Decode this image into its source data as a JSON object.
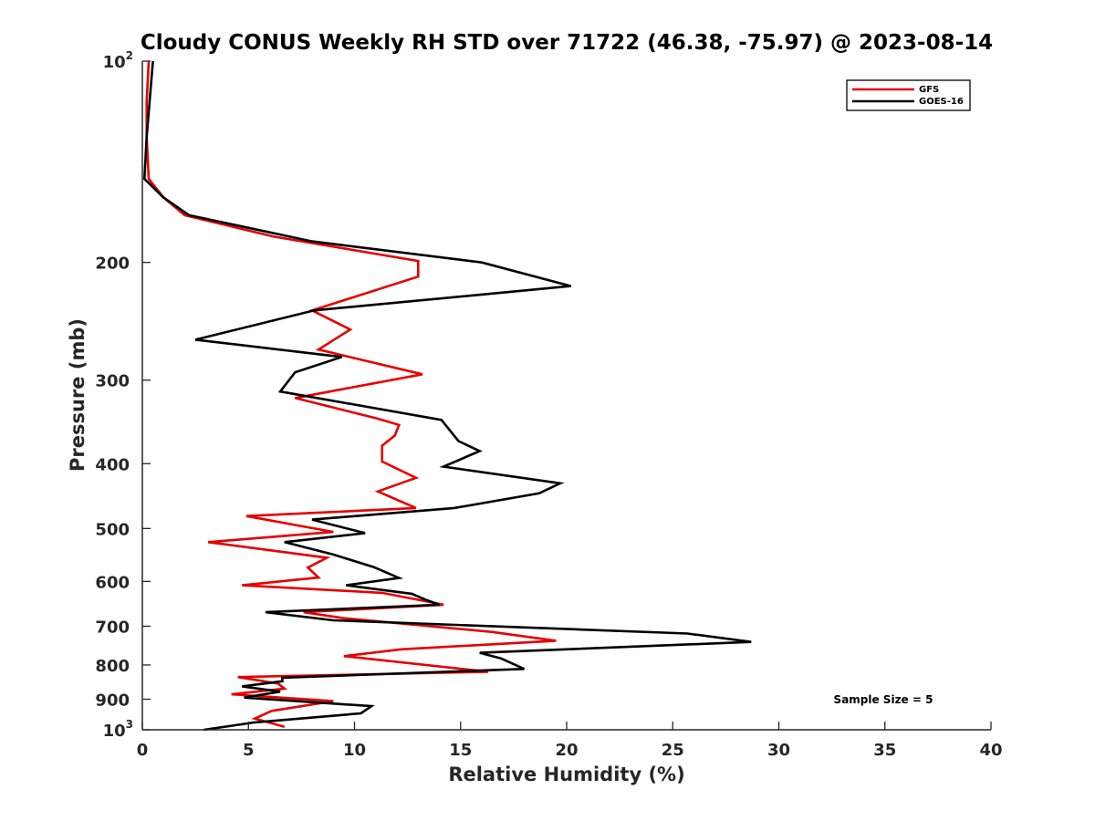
{
  "chart_data": {
    "type": "line",
    "title": "Cloudy CONUS Weekly RH STD over 71722 (46.38, -75.97) @ 2023-08-14",
    "xlabel": "Relative Humidity (%)",
    "ylabel": "Pressure (mb)",
    "xlim": [
      0,
      40
    ],
    "ylim": [
      100,
      1000
    ],
    "yscale": "log",
    "y_reversed": true,
    "grid": false,
    "legend_position": "top-right",
    "xticks": [
      "0",
      "5",
      "10",
      "15",
      "20",
      "25",
      "30",
      "35",
      "40"
    ],
    "xtick_values": [
      0,
      5,
      10,
      15,
      20,
      25,
      30,
      35,
      40
    ],
    "yticks": [
      {
        "value": 100,
        "label": "10",
        "exp": "2"
      },
      {
        "value": 200,
        "label": "200",
        "exp": ""
      },
      {
        "value": 300,
        "label": "300",
        "exp": ""
      },
      {
        "value": 400,
        "label": "400",
        "exp": ""
      },
      {
        "value": 500,
        "label": "500",
        "exp": ""
      },
      {
        "value": 600,
        "label": "600",
        "exp": ""
      },
      {
        "value": 700,
        "label": "700",
        "exp": ""
      },
      {
        "value": 800,
        "label": "800",
        "exp": ""
      },
      {
        "value": 900,
        "label": "900",
        "exp": ""
      },
      {
        "value": 1000,
        "label": "10",
        "exp": "3"
      }
    ],
    "series": [
      {
        "name": "GFS",
        "color": "#e60000",
        "points": [
          [
            0.3,
            100
          ],
          [
            0.2,
            115
          ],
          [
            0.2,
            130
          ],
          [
            0.3,
            150
          ],
          [
            1.0,
            160
          ],
          [
            2.0,
            170
          ],
          [
            6.2,
            183
          ],
          [
            13.0,
            199
          ],
          [
            13.0,
            210
          ],
          [
            8.0,
            236
          ],
          [
            9.8,
            252
          ],
          [
            8.3,
            270
          ],
          [
            13.2,
            294
          ],
          [
            7.2,
            319
          ],
          [
            11.0,
            342
          ],
          [
            12.1,
            350
          ],
          [
            11.9,
            363
          ],
          [
            11.3,
            376
          ],
          [
            11.3,
            397
          ],
          [
            12.9,
            420
          ],
          [
            11.1,
            440
          ],
          [
            12.9,
            466
          ],
          [
            4.9,
            479
          ],
          [
            9.0,
            506
          ],
          [
            3.1,
            524
          ],
          [
            8.7,
            553
          ],
          [
            7.8,
            572
          ],
          [
            8.3,
            592
          ],
          [
            4.7,
            608
          ],
          [
            11.3,
            624
          ],
          [
            14.2,
            650
          ],
          [
            7.6,
            667
          ],
          [
            9.5,
            681
          ],
          [
            16.5,
            714
          ],
          [
            19.5,
            736
          ],
          [
            12.2,
            758
          ],
          [
            9.5,
            776
          ],
          [
            16.3,
            819
          ],
          [
            4.5,
            834
          ],
          [
            6.4,
            853
          ],
          [
            6.7,
            868
          ],
          [
            4.2,
            885
          ],
          [
            9.0,
            906
          ],
          [
            6.1,
            937
          ],
          [
            5.3,
            962
          ],
          [
            6.7,
            990
          ]
        ]
      },
      {
        "name": "GOES-16",
        "color": "#000000",
        "points": [
          [
            0.5,
            100
          ],
          [
            0.2,
            130
          ],
          [
            0.1,
            150
          ],
          [
            1.0,
            160
          ],
          [
            2.2,
            170
          ],
          [
            8.0,
            186
          ],
          [
            16.0,
            200
          ],
          [
            20.2,
            217
          ],
          [
            8.1,
            236
          ],
          [
            2.5,
            261
          ],
          [
            9.4,
            277
          ],
          [
            7.2,
            292
          ],
          [
            6.5,
            312
          ],
          [
            14.1,
            344
          ],
          [
            14.9,
            370
          ],
          [
            15.9,
            383
          ],
          [
            14.2,
            404
          ],
          [
            19.7,
            428
          ],
          [
            18.7,
            443
          ],
          [
            14.7,
            466
          ],
          [
            8.0,
            485
          ],
          [
            10.5,
            508
          ],
          [
            6.7,
            524
          ],
          [
            9.0,
            547
          ],
          [
            10.9,
            571
          ],
          [
            12.1,
            593
          ],
          [
            9.6,
            608
          ],
          [
            12.7,
            626
          ],
          [
            13.4,
            640
          ],
          [
            14.0,
            650
          ],
          [
            5.8,
            667
          ],
          [
            9.0,
            686
          ],
          [
            25.7,
            718
          ],
          [
            28.7,
            739
          ],
          [
            15.9,
            767
          ],
          [
            16.9,
            782
          ],
          [
            18.0,
            811
          ],
          [
            6.6,
            836
          ],
          [
            6.6,
            846
          ],
          [
            4.7,
            861
          ],
          [
            6.5,
            877
          ],
          [
            4.8,
            895
          ],
          [
            10.8,
            922
          ],
          [
            10.3,
            945
          ],
          [
            5.3,
            975
          ],
          [
            2.9,
            1000
          ]
        ]
      }
    ],
    "annotations": [
      "Sample Size = 5"
    ]
  }
}
